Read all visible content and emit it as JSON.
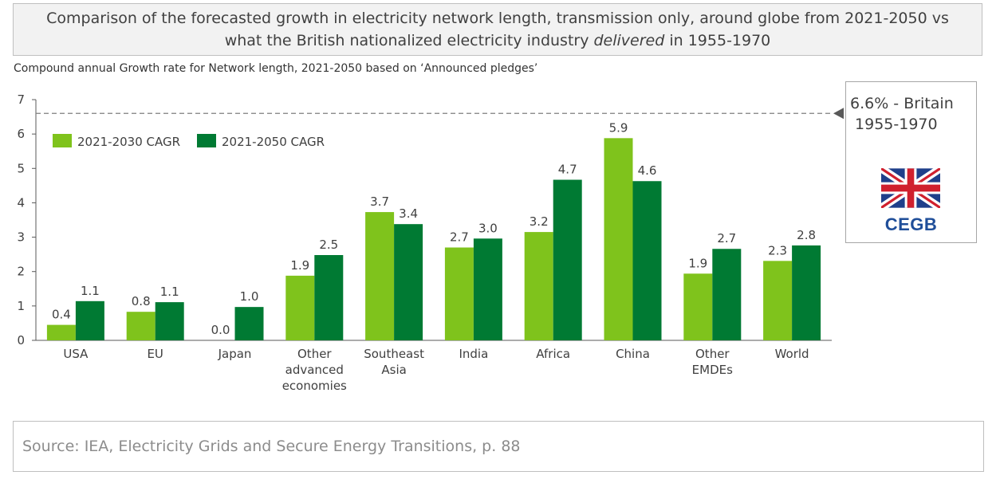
{
  "header": {
    "title_part1": "Comparison of the forecasted growth in electricity network length, transmission only, around globe from 2021-2050 vs what the British nationalized electricity industry ",
    "title_emphasis": "delivered",
    "title_part2": " in 1955-1970",
    "subtitle": "Compound annual Growth rate for Network length, 2021-2050 based on ‘Announced pledges’"
  },
  "callout": {
    "text": "6.6% - Britain\n 1955-1970",
    "logo_text": "CEGB",
    "flag_icon": "union-jack-flag-icon"
  },
  "source": "Source: IEA, Electricity Grids and Secure Energy Transitions, p. 88",
  "colors": {
    "series_light": "#7fc31c",
    "series_dark": "#007a33",
    "axis": "#595959",
    "reference_line": "#7f7f7f",
    "flag_blue": "#1f3f8a",
    "flag_red": "#d0202e"
  },
  "chart_data": {
    "type": "bar",
    "title": "Comparison of the forecasted growth in electricity network length, transmission only, around globe from 2021-2050 vs what the British nationalized electricity industry delivered in 1955-1970",
    "ylabel": "Compound annual Growth rate for Network length, 2021-2050 based on ‘Announced pledges’",
    "xlabel": "",
    "ylim": [
      0,
      7
    ],
    "yticks": [
      "0",
      "1",
      "2",
      "3",
      "4",
      "5",
      "6",
      "7"
    ],
    "grid": false,
    "legend": "top-left",
    "categories": [
      [
        "USA"
      ],
      [
        "EU"
      ],
      [
        "Japan"
      ],
      [
        "Other",
        "advanced",
        "economies"
      ],
      [
        "Southeast",
        "Asia"
      ],
      [
        "India"
      ],
      [
        "Africa"
      ],
      [
        "China"
      ],
      [
        "Other",
        "EMDEs"
      ],
      [
        "World"
      ]
    ],
    "series": [
      {
        "name": "2021-2030 CAGR",
        "values": [
          0.45,
          0.83,
          0.0,
          1.88,
          3.73,
          2.7,
          3.15,
          5.88,
          1.94,
          2.31
        ],
        "labels": [
          "0.4",
          "0.8",
          "0.0",
          "1.9",
          "3.7",
          "2.7",
          "3.2",
          "5.9",
          "1.9",
          "2.3"
        ]
      },
      {
        "name": "2021-2050 CAGR",
        "values": [
          1.14,
          1.11,
          0.97,
          2.48,
          3.38,
          2.96,
          4.67,
          4.63,
          2.66,
          2.76
        ],
        "labels": [
          "1.1",
          "1.1",
          "1.0",
          "2.5",
          "3.4",
          "3.0",
          "4.7",
          "4.6",
          "2.7",
          "2.8"
        ]
      }
    ],
    "reference_line": {
      "value": 6.6,
      "label": "6.6% - Britain 1955-1970"
    }
  }
}
